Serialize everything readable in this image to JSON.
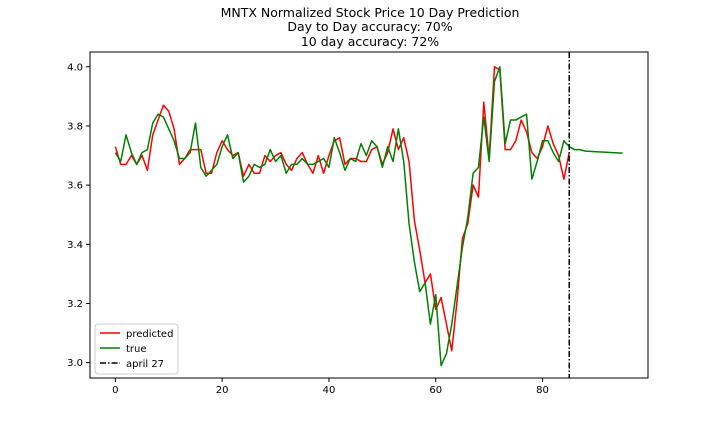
{
  "chart_data": {
    "type": "line",
    "title": "MNTX Normalized Stock Price 10 Day Prediction",
    "subtitle": [
      "Day to Day accuracy: 70%",
      "10 day accuracy: 72%"
    ],
    "xlabel": "",
    "ylabel": "",
    "xlim": [
      -4.75,
      99.75
    ],
    "ylim": [
      2.948,
      4.05
    ],
    "xticks": [
      0,
      20,
      40,
      60,
      80
    ],
    "yticks": [
      3.0,
      3.2,
      3.4,
      3.6,
      3.8,
      4.0
    ],
    "xtick_labels": [
      "0",
      "20",
      "40",
      "60",
      "80"
    ],
    "ytick_labels": [
      "3.0",
      "3.2",
      "3.4",
      "3.6",
      "3.8",
      "4.0"
    ],
    "grid": false,
    "legend_position": "lower-left",
    "series": [
      {
        "name": "predicted",
        "color": "#ff0000",
        "x": [
          0,
          1,
          2,
          3,
          4,
          5,
          6,
          7,
          8,
          9,
          10,
          11,
          12,
          13,
          14,
          15,
          16,
          17,
          18,
          19,
          20,
          21,
          22,
          23,
          24,
          25,
          26,
          27,
          28,
          29,
          30,
          31,
          32,
          33,
          34,
          35,
          36,
          37,
          38,
          39,
          40,
          41,
          42,
          43,
          44,
          45,
          46,
          47,
          48,
          49,
          50,
          51,
          52,
          53,
          54,
          55,
          56,
          57,
          58,
          59,
          60,
          61,
          62,
          63,
          64,
          65,
          66,
          67,
          68,
          69,
          70,
          71,
          72,
          73,
          74,
          75,
          76,
          77,
          78,
          79,
          80,
          81,
          82,
          83,
          84,
          85
        ],
        "values": [
          3.73,
          3.67,
          3.67,
          3.7,
          3.67,
          3.7,
          3.65,
          3.77,
          3.82,
          3.87,
          3.85,
          3.79,
          3.67,
          3.69,
          3.72,
          3.72,
          3.72,
          3.64,
          3.64,
          3.71,
          3.75,
          3.72,
          3.7,
          3.71,
          3.63,
          3.67,
          3.64,
          3.64,
          3.7,
          3.68,
          3.7,
          3.71,
          3.67,
          3.65,
          3.69,
          3.71,
          3.67,
          3.64,
          3.7,
          3.64,
          3.7,
          3.75,
          3.76,
          3.67,
          3.69,
          3.69,
          3.68,
          3.68,
          3.72,
          3.73,
          3.67,
          3.71,
          3.79,
          3.72,
          3.76,
          3.68,
          3.48,
          3.38,
          3.27,
          3.3,
          3.18,
          3.22,
          3.13,
          3.04,
          3.21,
          3.42,
          3.47,
          3.6,
          3.56,
          3.88,
          3.69,
          4.0,
          3.99,
          3.72,
          3.72,
          3.75,
          3.82,
          3.78,
          3.71,
          3.69,
          3.73,
          3.8,
          3.74,
          3.7,
          3.62,
          3.71
        ]
      },
      {
        "name": "true",
        "color": "#008000",
        "x": [
          0,
          1,
          2,
          3,
          4,
          5,
          6,
          7,
          8,
          9,
          10,
          11,
          12,
          13,
          14,
          15,
          16,
          17,
          18,
          19,
          20,
          21,
          22,
          23,
          24,
          25,
          26,
          27,
          28,
          29,
          30,
          31,
          32,
          33,
          34,
          35,
          36,
          37,
          38,
          39,
          40,
          41,
          42,
          43,
          44,
          45,
          46,
          47,
          48,
          49,
          50,
          51,
          52,
          53,
          54,
          55,
          56,
          57,
          58,
          59,
          60,
          61,
          62,
          63,
          64,
          65,
          66,
          67,
          68,
          69,
          70,
          71,
          72,
          73,
          74,
          75,
          76,
          77,
          78,
          79,
          80,
          81,
          82,
          83,
          84,
          85,
          86,
          87,
          88,
          89,
          90,
          91,
          92,
          93,
          94,
          95
        ],
        "values": [
          3.71,
          3.68,
          3.77,
          3.71,
          3.67,
          3.71,
          3.72,
          3.81,
          3.84,
          3.83,
          3.79,
          3.75,
          3.69,
          3.69,
          3.71,
          3.81,
          3.66,
          3.63,
          3.65,
          3.67,
          3.73,
          3.77,
          3.69,
          3.71,
          3.61,
          3.63,
          3.67,
          3.66,
          3.67,
          3.72,
          3.68,
          3.7,
          3.64,
          3.67,
          3.67,
          3.69,
          3.67,
          3.67,
          3.68,
          3.69,
          3.66,
          3.76,
          3.71,
          3.65,
          3.69,
          3.68,
          3.74,
          3.7,
          3.75,
          3.73,
          3.66,
          3.73,
          3.68,
          3.79,
          3.68,
          3.47,
          3.34,
          3.24,
          3.27,
          3.13,
          3.23,
          2.99,
          3.03,
          3.13,
          3.26,
          3.39,
          3.49,
          3.64,
          3.66,
          3.83,
          3.68,
          3.95,
          4.0,
          3.74,
          3.82,
          3.82,
          3.83,
          3.84,
          3.62,
          3.68,
          3.75,
          3.75,
          3.71,
          3.68,
          3.75,
          3.73,
          3.72,
          3.72,
          3.715,
          3.714,
          3.713,
          3.712,
          3.711,
          3.71,
          3.709,
          3.708
        ]
      }
    ],
    "vlines": [
      {
        "name": "april 27",
        "x": 85,
        "color": "#000000",
        "style": "dash-dot"
      }
    ]
  }
}
